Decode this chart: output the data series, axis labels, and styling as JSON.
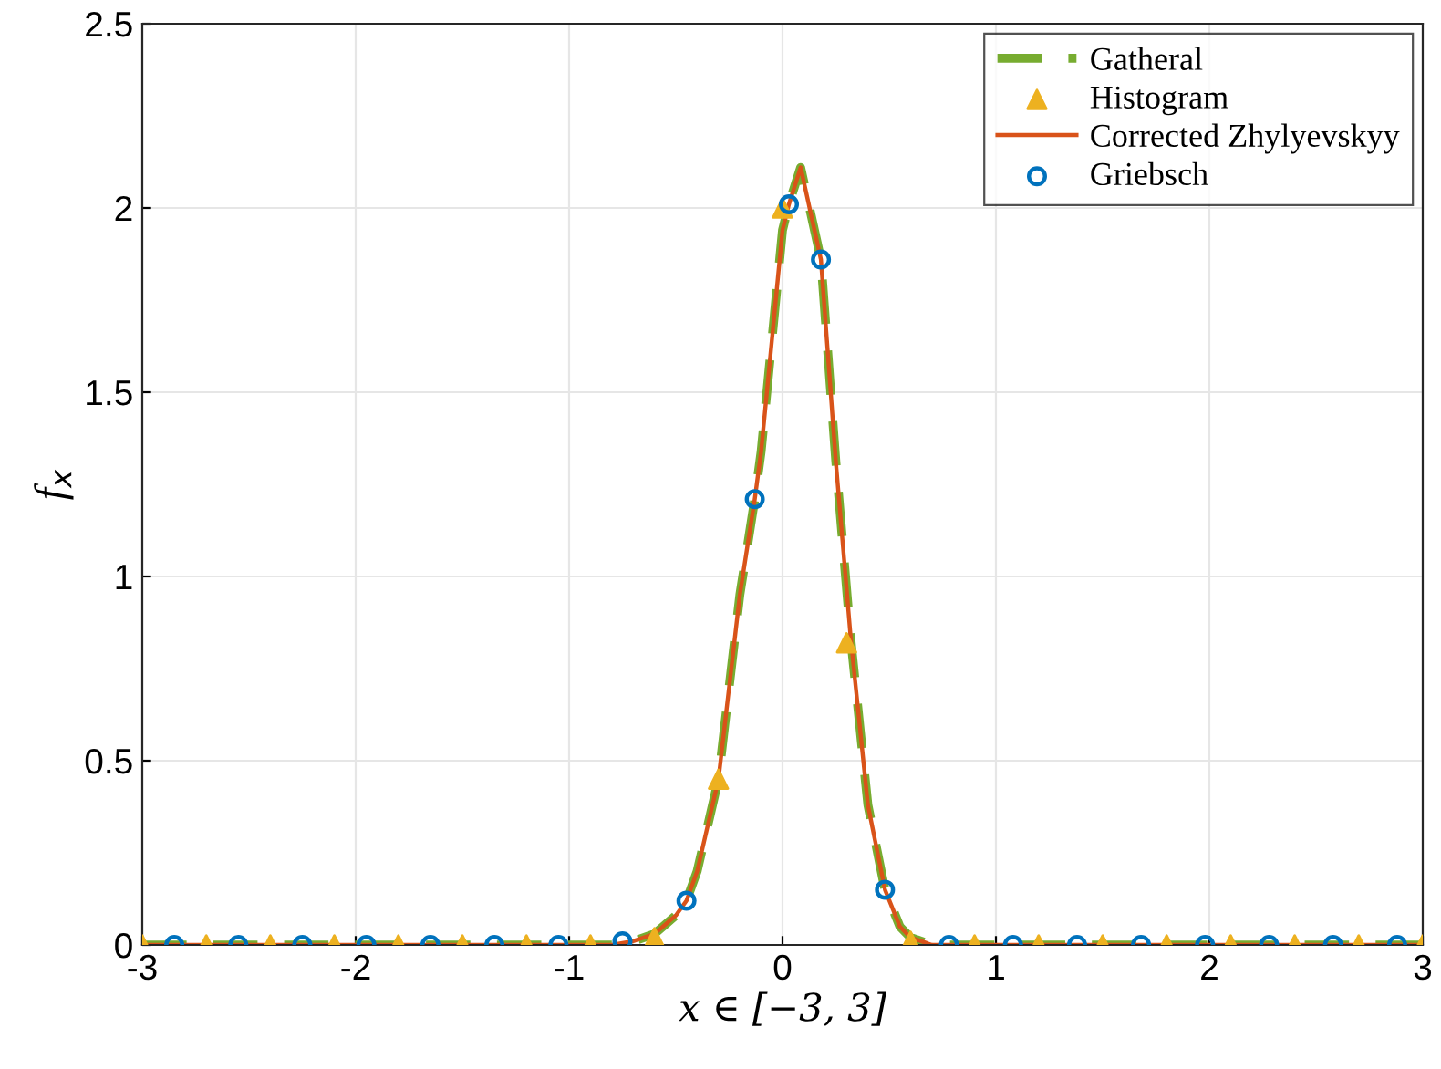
{
  "chart_data": {
    "type": "line",
    "xlabel": "x ∈ [−3, 3]",
    "ylabel": "f$_{x}$",
    "xlim": [
      -3,
      3
    ],
    "xticks": [
      -3,
      -2,
      -1,
      0,
      1,
      2,
      3
    ],
    "ylim": [
      0,
      2.5
    ],
    "yticks": [
      0,
      0.5,
      1,
      1.5,
      2,
      2.5
    ],
    "grid": true,
    "legend": "top right",
    "series": [
      {
        "name": "Gatheral",
        "color": "#77ac30",
        "line_style": "dashed",
        "marker": "none",
        "x": [
          -3,
          -2,
          -1,
          -0.8,
          -0.7,
          -0.6,
          -0.5,
          -0.45,
          -0.4,
          -0.3,
          -0.2,
          -0.13,
          -0.1,
          0,
          0.03,
          0.085,
          0.18,
          0.25,
          0.32,
          0.4,
          0.48,
          0.55,
          0.6,
          0.7,
          1,
          2,
          3
        ],
        "values": [
          0,
          0,
          0,
          0,
          0.01,
          0.03,
          0.08,
          0.12,
          0.2,
          0.45,
          0.95,
          1.21,
          1.34,
          1.94,
          2.01,
          2.11,
          1.86,
          1.31,
          0.83,
          0.38,
          0.15,
          0.05,
          0.02,
          0,
          0,
          0,
          0
        ]
      },
      {
        "name": "Histogram",
        "type": "scatter",
        "color": "#edb120",
        "marker": "triangle",
        "x": [
          -3,
          -2.7,
          -2.4,
          -2.1,
          -1.8,
          -1.5,
          -1.2,
          -0.9,
          -0.6,
          -0.3,
          0,
          0.3,
          0.6,
          0.9,
          1.2,
          1.5,
          1.8,
          2.1,
          2.4,
          2.7,
          3
        ],
        "values": [
          0,
          0,
          0,
          0,
          0,
          0,
          0,
          0,
          0.02,
          0.45,
          2.0,
          0.82,
          0.01,
          0,
          0,
          0,
          0,
          0,
          0,
          0,
          0
        ]
      },
      {
        "name": "Corrected Zhylyevskyy",
        "color": "#d95319",
        "line_style": "solid",
        "marker": "none",
        "x": [
          -3,
          -2,
          -1,
          -0.8,
          -0.7,
          -0.6,
          -0.5,
          -0.45,
          -0.4,
          -0.3,
          -0.2,
          -0.13,
          -0.1,
          0,
          0.03,
          0.085,
          0.18,
          0.25,
          0.32,
          0.4,
          0.48,
          0.55,
          0.6,
          0.7,
          1,
          2,
          3
        ],
        "values": [
          0,
          0,
          0,
          0,
          0.01,
          0.03,
          0.08,
          0.12,
          0.2,
          0.45,
          0.95,
          1.21,
          1.34,
          1.94,
          2.01,
          2.11,
          1.86,
          1.31,
          0.83,
          0.38,
          0.15,
          0.05,
          0.02,
          0,
          0,
          0,
          0
        ]
      },
      {
        "name": "Griebsch",
        "type": "scatter",
        "color": "#0072bd",
        "marker": "circle",
        "x": [
          -2.85,
          -2.55,
          -2.25,
          -1.95,
          -1.65,
          -1.35,
          -1.05,
          -0.75,
          -0.45,
          -0.13,
          0.03,
          0.18,
          0.48,
          0.78,
          1.08,
          1.38,
          1.68,
          1.98,
          2.28,
          2.58,
          2.88
        ],
        "values": [
          0,
          0,
          0,
          0,
          0,
          0,
          0,
          0.01,
          0.12,
          1.21,
          2.01,
          1.86,
          0.15,
          0,
          0,
          0,
          0,
          0,
          0,
          0,
          0
        ]
      }
    ]
  }
}
